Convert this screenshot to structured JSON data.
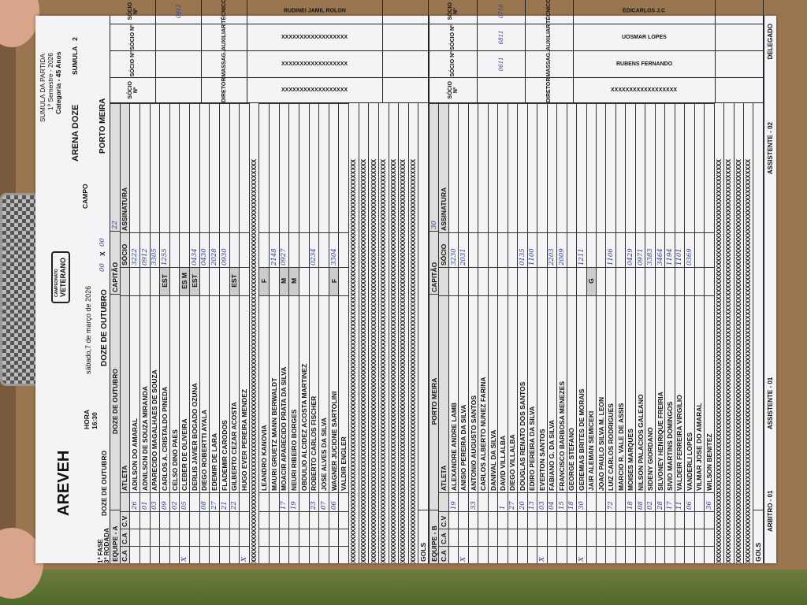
{
  "header": {
    "logo": "AREVEH",
    "badge_top": "CAMPEONATO",
    "badge": "VETERANO",
    "fase": "1ª FASE",
    "rodada": "3ª RODADA",
    "hora_label": "HORA",
    "hora": "16:30",
    "team_a": "DOZE DE OUTUBRO",
    "date": "sábado,7 de março de 2026",
    "score_a": "00",
    "score_x": "X",
    "score_b": "00",
    "campo_label": "CAMPO",
    "campo": "ARENA DOZE",
    "team_b": "PORTO MEIRA",
    "doc_title": "SUMULA DA PARTIDA",
    "semester": "1º Semestre - 2026",
    "category": "Categoria - 45 Anos",
    "sumula_label": "SUMULA",
    "sumula_no": "2"
  },
  "columns": {
    "ca": "C.A",
    "ca2": "C.A",
    "cv": "C.V",
    "athlete": "ATLETA",
    "captain": "CAPITÃO",
    "socio": "SÓCIO",
    "signature": "ASSINATURA",
    "gols": "GOLS",
    "xrow": "XXXXXXXXXXXXXXXXXXXXXXXXXXXXXXXXXXXXXXXXXXXXXXXXXXXXXXXXXXXXXXXXXXXXXXXXXXXXXXXXXXXXXXXXXXXXXXXXXXXXXXXXXX"
  },
  "team_a": {
    "label": "EQUIPE - A",
    "name": "DOZE DE OUTUBRO",
    "captain_no": "22",
    "players": [
      {
        "no": "26",
        "name": "ADILSON DO AMARAL",
        "mark": "",
        "socio": "3222"
      },
      {
        "no": "01",
        "name": "ADNILSON DE SOUZA MIRANDA",
        "mark": "",
        "socio": "0912"
      },
      {
        "no": "03",
        "name": "APARECIDO MAGALHAES DE SOUZA",
        "mark": "",
        "socio": "3305"
      },
      {
        "no": "09",
        "name": "CARLOS A. CRISTALDO PINEDA",
        "mark": "EST",
        "socio": "1255"
      },
      {
        "no": "02",
        "name": "CELSO DINO PAES",
        "mark": "",
        "socio": ""
      },
      {
        "no": "05",
        "name": "CLEBER DE OLIVEIRA",
        "mark": "ES M",
        "socio": "",
        "ca": "X"
      },
      {
        "no": "",
        "name": "DERLIS JAVIER BOGADO OZUNA",
        "mark": "EST",
        "socio": "0434"
      },
      {
        "no": "08",
        "name": "DIEGO ROBERTTI AYALA",
        "mark": "",
        "socio": "0430"
      },
      {
        "no": "27",
        "name": "EDEMIR DE LARA",
        "mark": "",
        "socio": "2028"
      },
      {
        "no": "21",
        "name": "FLADEMIR CARODOS",
        "mark": "",
        "socio": "0930"
      },
      {
        "no": "22",
        "name": "GILBERTO CEZAR ACOSTA",
        "mark": "EST",
        "socio": ""
      },
      {
        "no": "",
        "name": "HUGO EVER PEREIRA MENDEZ",
        "mark": "",
        "socio": "",
        "ca": "X"
      },
      {
        "x": true
      },
      {
        "no": "",
        "name": "LEANDRO KANOVIA",
        "mark": "F",
        "socio": ""
      },
      {
        "no": "",
        "name": "MAURI GRUETZ MANN BERWALDT",
        "mark": "",
        "socio": "2148"
      },
      {
        "no": "17",
        "name": "MOACIR APARECIDO PRATA DA SILVA",
        "mark": "M",
        "socio": "0927"
      },
      {
        "no": "19",
        "name": "NEURI RIBEIRO BORGES",
        "mark": "M",
        "socio": ""
      },
      {
        "no": "",
        "name": "OBDULIO ALCIDEZ ACOSTA MARTINEZ",
        "mark": "",
        "socio": ""
      },
      {
        "no": "23",
        "name": "ROBERTO CARLOS FISCHER",
        "mark": "",
        "socio": "0234"
      },
      {
        "no": "07",
        "name": "JOSE ALVES DA SILVA",
        "mark": "",
        "socio": ""
      },
      {
        "no": "06",
        "name": "WAGNER JUCIONE SARTOLINI",
        "mark": "F",
        "socio": "3304"
      },
      {
        "no": "",
        "name": "VALDIR ENGLER",
        "mark": "",
        "socio": ""
      },
      {
        "x": true
      },
      {
        "x": true
      },
      {
        "x": true
      },
      {
        "x": true
      },
      {
        "x": true
      },
      {
        "x": true
      },
      {
        "x": true
      }
    ],
    "staff": [
      {
        "role": "DIRETOR",
        "name": "XXXXXXXXXXXXXXXXXX",
        "socio_label": "SÓCIO Nº",
        "socio": ""
      },
      {
        "role": "MASSAG.",
        "name": "XXXXXXXXXXXXXXXXXX",
        "socio_label": "SÓCIO Nº",
        "socio": ""
      },
      {
        "role": "AUXILIAR",
        "name": "XXXXXXXXXXXXXXXXXX",
        "socio_label": "SÓCIO Nº",
        "socio": ""
      },
      {
        "role": "TÉCNICO",
        "name": "RUDINEI JAMIL ROLON",
        "socio_label": "SÓCIO Nº",
        "socio": "0915"
      }
    ]
  },
  "team_b": {
    "label": "EQUIPE - B",
    "name": "PORTO MEIRA",
    "captain_no": "30",
    "players": [
      {
        "no": "19",
        "name": "ALEXANDRE ANDRE LAMB",
        "mark": "",
        "socio": "3230"
      },
      {
        "no": "",
        "name": "ANISIO PEREIRA DA SILVA",
        "mark": "",
        "socio": "2031",
        "ca": "X"
      },
      {
        "no": "33",
        "name": "ANTONIO AUGUSTO SANTOS",
        "mark": "",
        "socio": ""
      },
      {
        "no": "",
        "name": "CARLOS ALBERTO NUNEZ FARINA",
        "mark": "",
        "socio": ""
      },
      {
        "no": "",
        "name": "DANIVAL DA SILVA",
        "mark": "",
        "socio": ""
      },
      {
        "no": "1",
        "name": "DAVID VILLALBA",
        "mark": "",
        "socio": ""
      },
      {
        "no": "27",
        "name": "DIEGO VILLALBA",
        "mark": "",
        "socio": ""
      },
      {
        "no": "20",
        "name": "DOUGLAS RENATO DOS SANTOS",
        "mark": "",
        "socio": "0135"
      },
      {
        "no": "13",
        "name": "EDIRO PEREIRA DA SILVA",
        "mark": "",
        "socio": "1100"
      },
      {
        "no": "03",
        "name": "EVERTON SANTOS",
        "mark": "",
        "socio": "",
        "ca": "X"
      },
      {
        "no": "04",
        "name": "FABIANO G. DA SILVA",
        "mark": "",
        "socio": "2203"
      },
      {
        "no": "15",
        "name": "FRANCISCO BARBOSA MENEZES",
        "mark": "",
        "socio": "2009"
      },
      {
        "no": "18",
        "name": "GEORGE STEFANO",
        "mark": "",
        "socio": ""
      },
      {
        "no": "30",
        "name": "GEREMIAS BRITES DE MORAIS",
        "mark": "",
        "socio": "1211",
        "ca": "X"
      },
      {
        "no": "",
        "name": "JAIR ALEMAN SEMICEKI",
        "mark": "G",
        "socio": ""
      },
      {
        "no": "",
        "name": "JOAO PAULO SILVA M. LEON",
        "mark": "",
        "socio": ""
      },
      {
        "no": "72",
        "name": "LUIZ CARLOS RODRIGUES",
        "mark": "",
        "socio": "1106"
      },
      {
        "no": "",
        "name": "MARCIO R. VALE DE ASSIS",
        "mark": "",
        "socio": ""
      },
      {
        "no": "18",
        "name": "MOISES MARQUES",
        "mark": "",
        "socio": "0429"
      },
      {
        "no": "08",
        "name": "NILSON PALACIOS GALEANO",
        "mark": "",
        "socio": "0971"
      },
      {
        "no": "02",
        "name": "SIDENY GIORDANO",
        "mark": "",
        "socio": "3383"
      },
      {
        "no": "28",
        "name": "SILVONEY HENRIQUE FREIRIA",
        "mark": "",
        "socio": "3464"
      },
      {
        "no": "17",
        "name": "SIVIO MARTINS DOMINGOS",
        "mark": "",
        "socio": "1194"
      },
      {
        "no": "11",
        "name": "VALDEIR FERREIRA VIRGILIO",
        "mark": "",
        "socio": "1101"
      },
      {
        "no": "06",
        "name": "VANDERLI LOPES",
        "mark": "",
        "socio": "0369"
      },
      {
        "no": "",
        "name": "VILMAR JOSE DO AMARAL",
        "mark": "",
        "socio": ""
      },
      {
        "no": "36",
        "name": "WILSON BENITEZ",
        "mark": "",
        "socio": ""
      },
      {
        "x": true
      },
      {
        "x": true
      },
      {
        "x": true
      },
      {
        "x": true
      }
    ],
    "staff": [
      {
        "role": "DIRETOR",
        "name": "XXXXXXXXXXXXXXXXXX",
        "socio_label": "SÓCIO Nº",
        "socio": ""
      },
      {
        "role": "MASSAG.",
        "name": "RUBENS FERNANDO",
        "socio_label": "SÓCIO Nº",
        "socio": "0611"
      },
      {
        "role": "AUXILIAR",
        "name": "UOSMAR LOPES",
        "socio_label": "SÓCIO Nº",
        "socio": "6811"
      },
      {
        "role": "TÉCNICO",
        "name": "EDICARLOS J.C",
        "socio_label": "SÓCIO Nº",
        "socio": "0710"
      }
    ]
  },
  "footer": {
    "referee": "ARBITRO - 01",
    "assistant1": "ASSISTENTE - 01",
    "assistant2": "ASSISTENTE - 02",
    "delegate": "DELEGADO"
  }
}
